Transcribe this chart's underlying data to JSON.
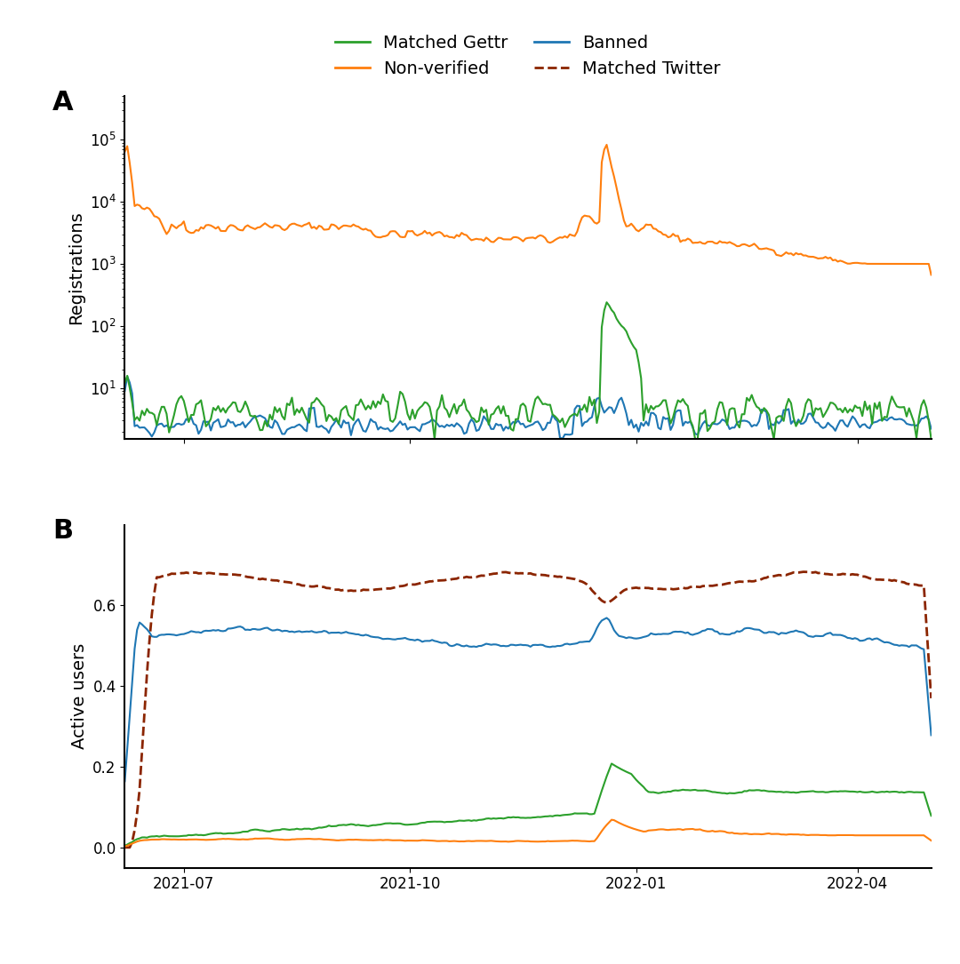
{
  "colors": {
    "matched_gettr": "#2ca02c",
    "banned": "#1f77b4",
    "non_verified": "#ff7f0e",
    "matched_twitter": "#8b2500"
  },
  "legend_labels": {
    "matched_gettr": "Matched Gettr",
    "banned": "Banned",
    "non_verified": "Non-verified",
    "matched_twitter": "Matched Twitter"
  },
  "panel_a_ylabel": "Registrations",
  "panel_b_ylabel": "Active users",
  "panel_a_label": "A",
  "panel_b_label": "B",
  "date_start": "2021-06-07",
  "date_end": "2022-05-01",
  "n_days": 329,
  "background_color": "#ffffff"
}
